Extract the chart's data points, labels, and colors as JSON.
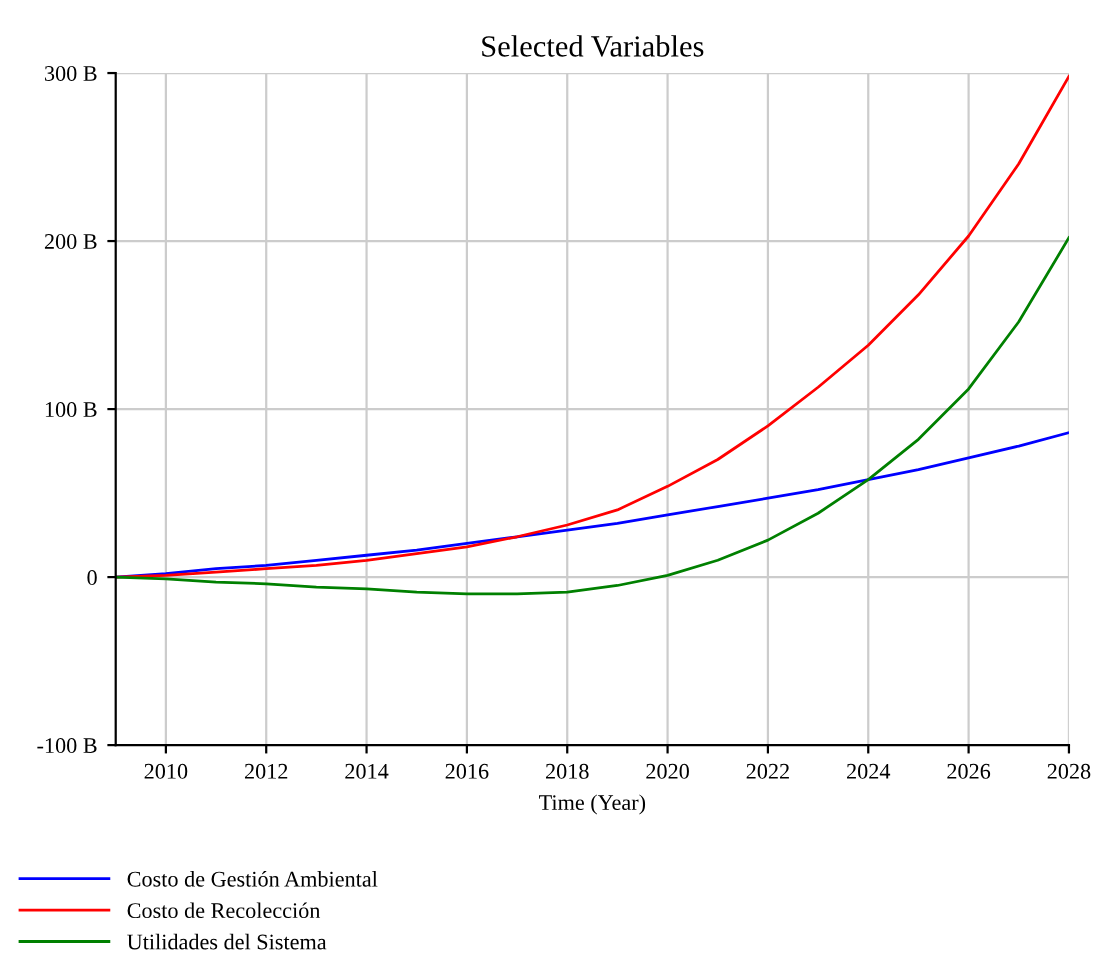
{
  "chart_data": {
    "type": "line",
    "title": "Selected Variables",
    "xlabel": "Time (Year)",
    "x": [
      2009,
      2010,
      2011,
      2012,
      2013,
      2014,
      2015,
      2016,
      2017,
      2018,
      2019,
      2020,
      2021,
      2022,
      2023,
      2024,
      2025,
      2026,
      2027,
      2028
    ],
    "series": [
      {
        "name": "Costo de Gestión Ambiental",
        "color": "#0000ff",
        "values": [
          0,
          2,
          5,
          7,
          10,
          13,
          16,
          20,
          24,
          28,
          32,
          37,
          42,
          47,
          52,
          58,
          64,
          71,
          78,
          86
        ]
      },
      {
        "name": "Costo de Recolección",
        "color": "#ff0000",
        "values": [
          0,
          1,
          3,
          5,
          7,
          10,
          14,
          18,
          24,
          31,
          40,
          54,
          70,
          90,
          113,
          138,
          168,
          203,
          246,
          298
        ]
      },
      {
        "name": "Utilidades del Sistema",
        "color": "#008000",
        "values": [
          0,
          -1,
          -3,
          -4,
          -6,
          -7,
          -9,
          -10,
          -10,
          -9,
          -5,
          1,
          10,
          22,
          38,
          58,
          82,
          112,
          152,
          202
        ]
      }
    ],
    "xlim": [
      2009,
      2028
    ],
    "xticks": [
      2010,
      2012,
      2014,
      2016,
      2018,
      2020,
      2022,
      2024,
      2026,
      2028
    ],
    "ylim": [
      -100,
      300
    ],
    "yticks": [
      {
        "value": -100,
        "label": "-100 B"
      },
      0,
      {
        "value": 100,
        "label": "100 B"
      },
      {
        "value": 200,
        "label": "200 B"
      },
      {
        "value": 300,
        "label": "300 B"
      }
    ],
    "grid": true,
    "legend": "bottom",
    "marker": "none",
    "line_style": "solid"
  }
}
